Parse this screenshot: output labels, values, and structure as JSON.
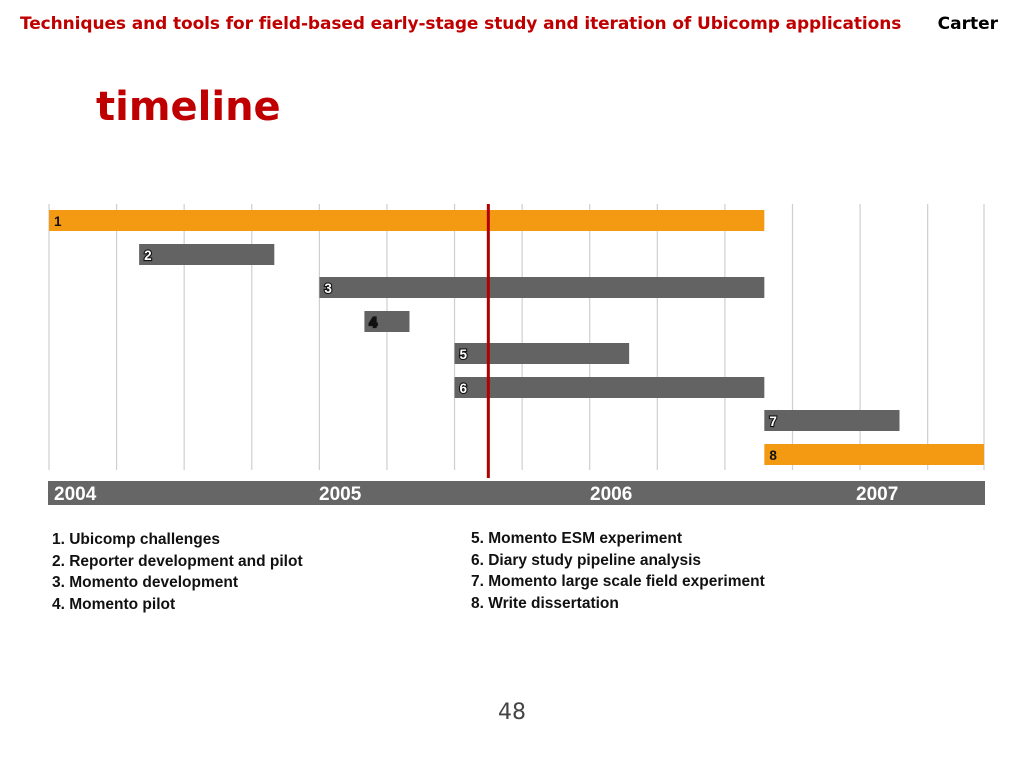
{
  "header": {
    "title": "Techniques and tools for field-based early-stage study and iteration of Ubicomp applications",
    "author": "Carter"
  },
  "slide_title": "timeline",
  "page_number": "48",
  "colors": {
    "accent_red": "#c00000",
    "bar_orange": "#f49a12",
    "bar_gray": "#636363",
    "axis_bar": "#666666",
    "grid": "#cfcfcf",
    "today_line": "#b00000"
  },
  "chart_data": {
    "type": "gantt",
    "x_unit": "months since Jan 2004",
    "xlim": [
      0,
      41.5
    ],
    "year_labels": [
      {
        "label": "2004",
        "month": 0
      },
      {
        "label": "2005",
        "month": 12
      },
      {
        "label": "2006",
        "month": 24
      },
      {
        "label": "2007",
        "month": 36
      }
    ],
    "current_marker_month": 19.5,
    "tasks": [
      {
        "id": "1",
        "name": "Ubicomp challenges",
        "start": 0,
        "end": 31.75,
        "color": "orange"
      },
      {
        "id": "2",
        "name": "Reporter development and pilot",
        "start": 4,
        "end": 10,
        "color": "gray"
      },
      {
        "id": "3",
        "name": "Momento development",
        "start": 12,
        "end": 31.75,
        "color": "gray"
      },
      {
        "id": "4",
        "name": "Momento pilot",
        "start": 14,
        "end": 16,
        "color": "gray"
      },
      {
        "id": "5",
        "name": "Momento ESM experiment",
        "start": 18,
        "end": 25.75,
        "color": "gray"
      },
      {
        "id": "6",
        "name": "Diary study pipeline analysis",
        "start": 18,
        "end": 31.75,
        "color": "gray"
      },
      {
        "id": "7",
        "name": "Momento large scale field experiment",
        "start": 31.75,
        "end": 37.75,
        "color": "gray"
      },
      {
        "id": "8",
        "name": "Write dissertation",
        "start": 31.75,
        "end": 41.5,
        "color": "orange"
      }
    ]
  },
  "legend": {
    "left": [
      "1. Ubicomp challenges",
      "2. Reporter development and pilot",
      "3. Momento development",
      "4. Momento pilot"
    ],
    "right": [
      "5. Momento ESM experiment",
      "6. Diary study pipeline analysis",
      "7. Momento large scale field experiment",
      "8. Write dissertation"
    ]
  }
}
